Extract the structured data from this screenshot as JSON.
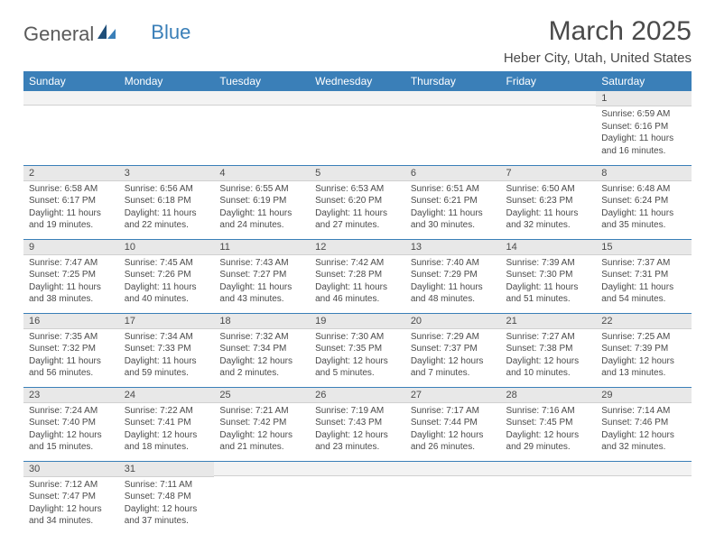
{
  "brand": {
    "word1": "General",
    "word2": "Blue"
  },
  "title": "March 2025",
  "location": "Heber City, Utah, United States",
  "colors": {
    "header_bg": "#3a7fb8",
    "header_text": "#ffffff",
    "daynum_bg": "#e8e8e8",
    "border": "#3a7fb8",
    "text": "#4a4a4a"
  },
  "weekdays": [
    "Sunday",
    "Monday",
    "Tuesday",
    "Wednesday",
    "Thursday",
    "Friday",
    "Saturday"
  ],
  "weeks": [
    [
      null,
      null,
      null,
      null,
      null,
      null,
      {
        "n": "1",
        "sr": "6:59 AM",
        "ss": "6:16 PM",
        "dl": "11 hours and 16 minutes."
      }
    ],
    [
      {
        "n": "2",
        "sr": "6:58 AM",
        "ss": "6:17 PM",
        "dl": "11 hours and 19 minutes."
      },
      {
        "n": "3",
        "sr": "6:56 AM",
        "ss": "6:18 PM",
        "dl": "11 hours and 22 minutes."
      },
      {
        "n": "4",
        "sr": "6:55 AM",
        "ss": "6:19 PM",
        "dl": "11 hours and 24 minutes."
      },
      {
        "n": "5",
        "sr": "6:53 AM",
        "ss": "6:20 PM",
        "dl": "11 hours and 27 minutes."
      },
      {
        "n": "6",
        "sr": "6:51 AM",
        "ss": "6:21 PM",
        "dl": "11 hours and 30 minutes."
      },
      {
        "n": "7",
        "sr": "6:50 AM",
        "ss": "6:23 PM",
        "dl": "11 hours and 32 minutes."
      },
      {
        "n": "8",
        "sr": "6:48 AM",
        "ss": "6:24 PM",
        "dl": "11 hours and 35 minutes."
      }
    ],
    [
      {
        "n": "9",
        "sr": "7:47 AM",
        "ss": "7:25 PM",
        "dl": "11 hours and 38 minutes."
      },
      {
        "n": "10",
        "sr": "7:45 AM",
        "ss": "7:26 PM",
        "dl": "11 hours and 40 minutes."
      },
      {
        "n": "11",
        "sr": "7:43 AM",
        "ss": "7:27 PM",
        "dl": "11 hours and 43 minutes."
      },
      {
        "n": "12",
        "sr": "7:42 AM",
        "ss": "7:28 PM",
        "dl": "11 hours and 46 minutes."
      },
      {
        "n": "13",
        "sr": "7:40 AM",
        "ss": "7:29 PM",
        "dl": "11 hours and 48 minutes."
      },
      {
        "n": "14",
        "sr": "7:39 AM",
        "ss": "7:30 PM",
        "dl": "11 hours and 51 minutes."
      },
      {
        "n": "15",
        "sr": "7:37 AM",
        "ss": "7:31 PM",
        "dl": "11 hours and 54 minutes."
      }
    ],
    [
      {
        "n": "16",
        "sr": "7:35 AM",
        "ss": "7:32 PM",
        "dl": "11 hours and 56 minutes."
      },
      {
        "n": "17",
        "sr": "7:34 AM",
        "ss": "7:33 PM",
        "dl": "11 hours and 59 minutes."
      },
      {
        "n": "18",
        "sr": "7:32 AM",
        "ss": "7:34 PM",
        "dl": "12 hours and 2 minutes."
      },
      {
        "n": "19",
        "sr": "7:30 AM",
        "ss": "7:35 PM",
        "dl": "12 hours and 5 minutes."
      },
      {
        "n": "20",
        "sr": "7:29 AM",
        "ss": "7:37 PM",
        "dl": "12 hours and 7 minutes."
      },
      {
        "n": "21",
        "sr": "7:27 AM",
        "ss": "7:38 PM",
        "dl": "12 hours and 10 minutes."
      },
      {
        "n": "22",
        "sr": "7:25 AM",
        "ss": "7:39 PM",
        "dl": "12 hours and 13 minutes."
      }
    ],
    [
      {
        "n": "23",
        "sr": "7:24 AM",
        "ss": "7:40 PM",
        "dl": "12 hours and 15 minutes."
      },
      {
        "n": "24",
        "sr": "7:22 AM",
        "ss": "7:41 PM",
        "dl": "12 hours and 18 minutes."
      },
      {
        "n": "25",
        "sr": "7:21 AM",
        "ss": "7:42 PM",
        "dl": "12 hours and 21 minutes."
      },
      {
        "n": "26",
        "sr": "7:19 AM",
        "ss": "7:43 PM",
        "dl": "12 hours and 23 minutes."
      },
      {
        "n": "27",
        "sr": "7:17 AM",
        "ss": "7:44 PM",
        "dl": "12 hours and 26 minutes."
      },
      {
        "n": "28",
        "sr": "7:16 AM",
        "ss": "7:45 PM",
        "dl": "12 hours and 29 minutes."
      },
      {
        "n": "29",
        "sr": "7:14 AM",
        "ss": "7:46 PM",
        "dl": "12 hours and 32 minutes."
      }
    ],
    [
      {
        "n": "30",
        "sr": "7:12 AM",
        "ss": "7:47 PM",
        "dl": "12 hours and 34 minutes."
      },
      {
        "n": "31",
        "sr": "7:11 AM",
        "ss": "7:48 PM",
        "dl": "12 hours and 37 minutes."
      },
      null,
      null,
      null,
      null,
      null
    ]
  ],
  "labels": {
    "sunrise": "Sunrise:",
    "sunset": "Sunset:",
    "daylight": "Daylight:"
  }
}
